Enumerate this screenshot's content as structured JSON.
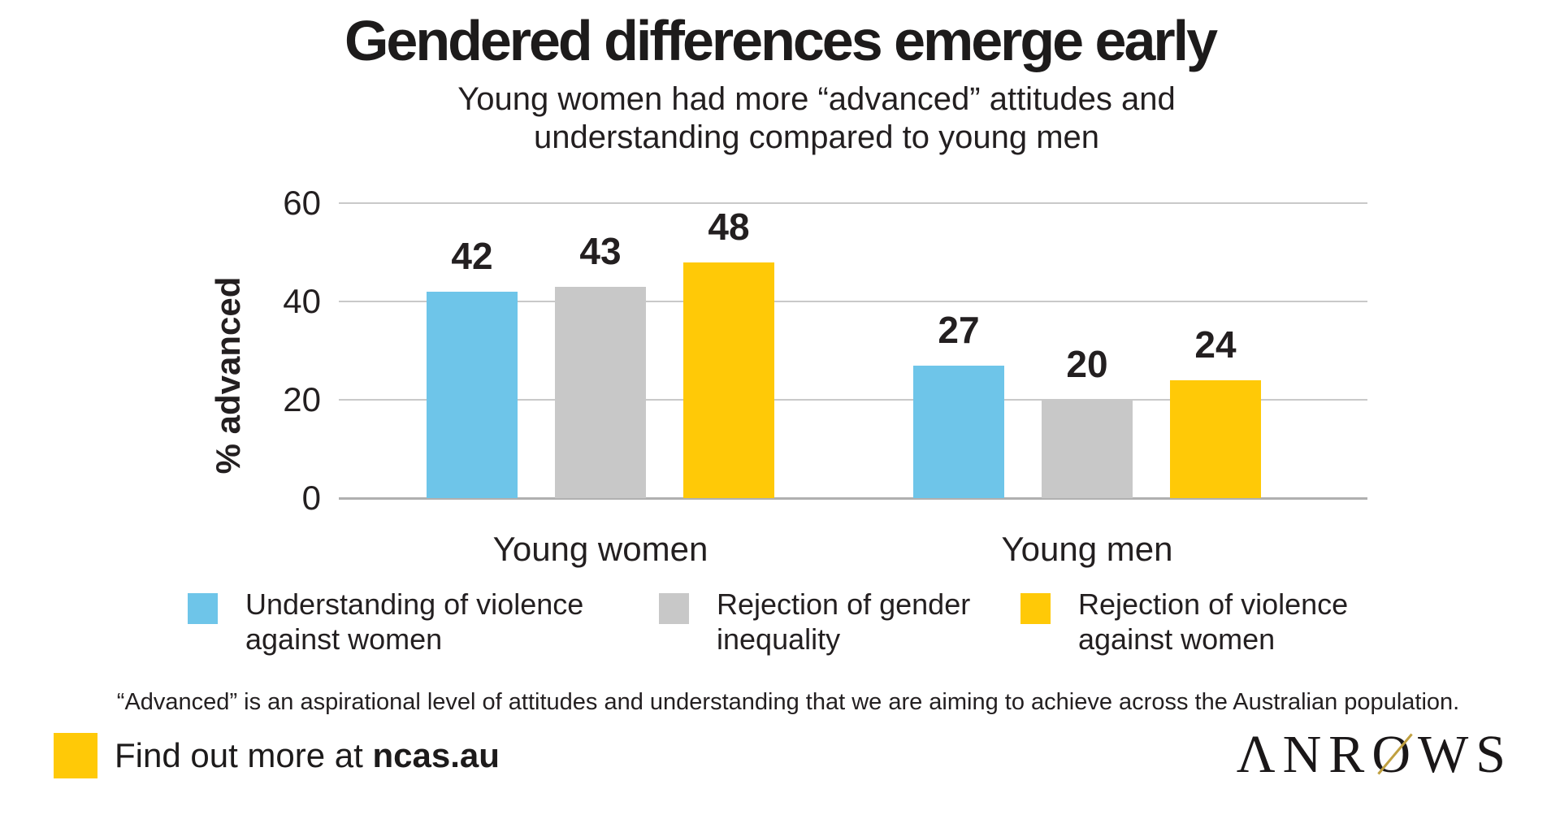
{
  "header": {
    "title": "Gendered differences emerge early",
    "subtitle_line1": "Young women had more “advanced” attitudes and",
    "subtitle_line2": "understanding compared to young men"
  },
  "chart_data": {
    "type": "bar",
    "title": "Gendered differences emerge early",
    "subtitle": "Young women had more “advanced” attitudes and understanding compared to young men",
    "categories": [
      "Young women",
      "Young men"
    ],
    "series": [
      {
        "name": "Understanding of violence against women",
        "color": "#6EC5E9",
        "values": [
          42,
          27
        ]
      },
      {
        "name": "Rejection of gender inequality",
        "color": "#C8C8C8",
        "values": [
          43,
          20
        ]
      },
      {
        "name": "Rejection of violence against women",
        "color": "#FFC907",
        "values": [
          48,
          24
        ]
      }
    ],
    "xlabel": "",
    "ylabel": "% advanced",
    "ylim": [
      0,
      60
    ],
    "yticks": [
      0,
      20,
      40,
      60
    ],
    "grid": "horizontal",
    "legend_position": "bottom"
  },
  "legend": {
    "items": [
      {
        "label_line1": "Understanding of violence",
        "label_line2": "against women",
        "color": "#6EC5E9"
      },
      {
        "label_line1": "Rejection of gender",
        "label_line2": "inequality",
        "color": "#C8C8C8"
      },
      {
        "label_line1": "Rejection of violence",
        "label_line2": "against women",
        "color": "#FFC907"
      }
    ]
  },
  "footnote": "“Advanced” is an aspirational level of attitudes and understanding that we are aiming to achieve across the Australian population.",
  "footer": {
    "text_regular": "Find out more at ",
    "text_bold": "ncas.au",
    "marker_color": "#FFC907",
    "logo": {
      "letters_pre": "ΛNR",
      "letter_o": "O",
      "letters_post": "WS",
      "slash_color": "#C0A040"
    }
  }
}
